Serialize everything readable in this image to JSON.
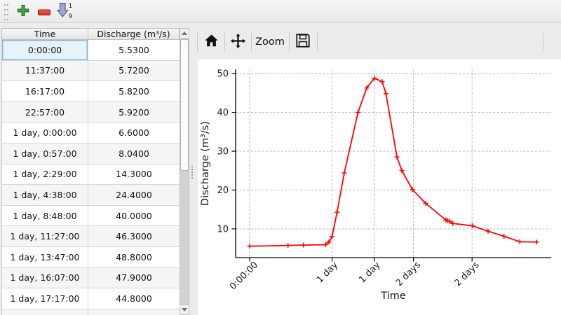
{
  "main_toolbar": {
    "buttons": [
      {
        "name": "add-row",
        "icon": "plus-icon"
      },
      {
        "name": "delete-row",
        "icon": "minus-icon"
      },
      {
        "name": "sort-rows",
        "icon": "sort-ascending-icon"
      }
    ],
    "sort_digits": [
      "1",
      "9"
    ]
  },
  "table": {
    "columns": [
      "Time",
      "Discharge (m³/s)"
    ],
    "selected": {
      "row": 0,
      "column": 0
    },
    "rows": [
      [
        "0:00:00",
        "5.5300"
      ],
      [
        "11:37:00",
        "5.7200"
      ],
      [
        "16:17:00",
        "5.8200"
      ],
      [
        "22:57:00",
        "5.9200"
      ],
      [
        "1 day, 0:00:00",
        "6.6000"
      ],
      [
        "1 day, 0:57:00",
        "8.0400"
      ],
      [
        "1 day, 2:29:00",
        "14.3000"
      ],
      [
        "1 day, 4:38:00",
        "24.4000"
      ],
      [
        "1 day, 8:48:00",
        "40.0000"
      ],
      [
        "1 day, 11:27:00",
        "46.3000"
      ],
      [
        "1 day, 13:47:00",
        "48.8000"
      ],
      [
        "1 day, 16:07:00",
        "47.9000"
      ],
      [
        "1 day, 17:17:00",
        "44.8000"
      ]
    ]
  },
  "chart_toolbar": {
    "items": [
      {
        "name": "home",
        "type": "icon"
      },
      {
        "name": "pan",
        "type": "icon"
      },
      {
        "name": "zoom",
        "type": "text",
        "label": "Zoom"
      },
      {
        "name": "save",
        "type": "icon"
      }
    ],
    "zoom_label": "Zoom"
  },
  "chart_data": {
    "type": "line",
    "title": "",
    "xlabel": "Time",
    "ylabel": "Discharge (m³/s)",
    "line_color": "#ff0000",
    "marker": "+",
    "grid": true,
    "grid_style": "dashed",
    "x_unit": "hours",
    "x": [
      0,
      11.62,
      16.28,
      22.95,
      24.0,
      24.95,
      26.48,
      28.63,
      32.8,
      35.45,
      37.78,
      40.12,
      41.28,
      44.6,
      46.1,
      49.3,
      53.3,
      59.4,
      59.9,
      60.5,
      61.5,
      67.4,
      72.2,
      77.0,
      81.8,
      86.9
    ],
    "y": [
      5.53,
      5.72,
      5.82,
      5.92,
      6.6,
      8.04,
      14.3,
      24.4,
      40.0,
      46.3,
      48.8,
      47.9,
      44.8,
      28.5,
      25.0,
      20.1,
      16.6,
      12.3,
      12.1,
      12.0,
      11.4,
      10.8,
      9.4,
      8.1,
      6.7,
      6.6
    ],
    "x_ticks": [
      {
        "pos": 0,
        "label": "0:00:00"
      },
      {
        "pos": 24.95,
        "label": "1 day"
      },
      {
        "pos": 37.78,
        "label": "1 day"
      },
      {
        "pos": 49.6,
        "label": "2 days"
      },
      {
        "pos": 67.35,
        "label": "2 days"
      }
    ],
    "y_ticks": [
      10,
      20,
      30,
      40,
      50
    ],
    "xlim": [
      -4.25,
      91.3
    ],
    "ylim": [
      2.6,
      51.1
    ],
    "legend": null
  },
  "colors": {
    "selection_bg": "#e7f3fb",
    "selection_border": "#86b8d9",
    "window_bg": "#ececec",
    "series": "#ff0000"
  }
}
